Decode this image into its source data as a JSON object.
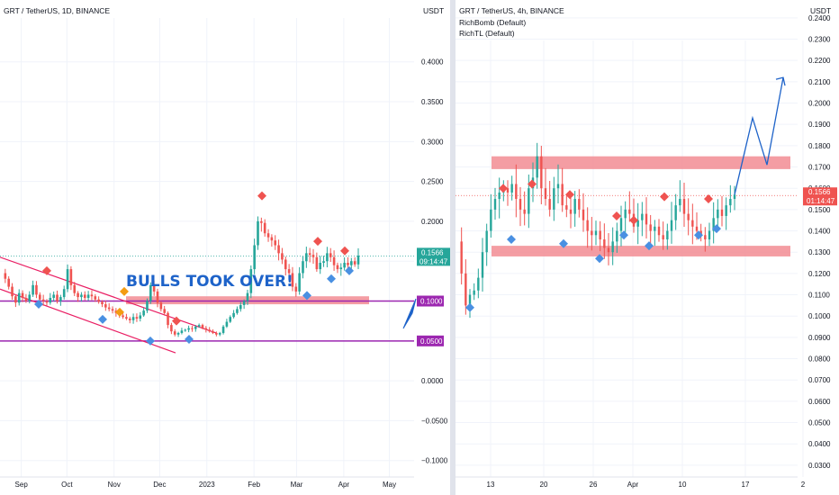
{
  "chart_data": [
    {
      "type": "candlestick",
      "title": "GRT / TetherUS, 1D, BINANCE",
      "currency": "USDT",
      "y_ticks": [
        -0.1,
        -0.05,
        0.0,
        0.05,
        0.1,
        0.15,
        0.2,
        0.25,
        0.3,
        0.35,
        0.4
      ],
      "y_tick_labels": [
        "−0.1000",
        "−0.0500",
        "0.0000",
        "0.0500",
        "0.1000",
        "0.1500",
        "0.2000",
        "0.2500",
        "0.3000",
        "0.3500",
        "0.4000"
      ],
      "ylim": [
        -0.115,
        0.455
      ],
      "x_labels": [
        "Sep",
        "Oct",
        "Nov",
        "Dec",
        "2023",
        "Feb",
        "Mar",
        "Apr",
        "May"
      ],
      "x_label_index": [
        0,
        30,
        61,
        91,
        122,
        153,
        181,
        212,
        242
      ],
      "x_start_offset": -14,
      "x_total_days": 290,
      "price_close": [
        0.135,
        0.128,
        0.118,
        0.106,
        0.098,
        0.11,
        0.104,
        0.1,
        0.108,
        0.12,
        0.108,
        0.102,
        0.1,
        0.098,
        0.104,
        0.108,
        0.1,
        0.105,
        0.115,
        0.14,
        0.12,
        0.11,
        0.105,
        0.108,
        0.104,
        0.108,
        0.106,
        0.102,
        0.099,
        0.096,
        0.092,
        0.09,
        0.088,
        0.085,
        0.082,
        0.08,
        0.078,
        0.076,
        0.08,
        0.078,
        0.082,
        0.088,
        0.1,
        0.12,
        0.112,
        0.098,
        0.09,
        0.085,
        0.07,
        0.062,
        0.058,
        0.06,
        0.063,
        0.064,
        0.066,
        0.065,
        0.068,
        0.07,
        0.066,
        0.064,
        0.062,
        0.06,
        0.058,
        0.06,
        0.068,
        0.074,
        0.08,
        0.085,
        0.09,
        0.095,
        0.1,
        0.11,
        0.14,
        0.17,
        0.2,
        0.198,
        0.185,
        0.18,
        0.176,
        0.17,
        0.16,
        0.152,
        0.14,
        0.135,
        0.118,
        0.112,
        0.135,
        0.15,
        0.16,
        0.158,
        0.155,
        0.14,
        0.148,
        0.15,
        0.16,
        0.155,
        0.145,
        0.14,
        0.142,
        0.148,
        0.145,
        0.15,
        0.146,
        0.157
      ],
      "marker_down_label": "BULLS TOOK OVER!",
      "price_tag": {
        "value": "0.1566",
        "countdown": "09:14:47"
      },
      "level_tags": [
        "0.1000",
        "0.0500"
      ],
      "levels": [
        0.1,
        0.05
      ],
      "zone": [
        0.096,
        0.106
      ],
      "colors": {
        "up": "#26a69a",
        "down": "#ef5350",
        "zone": "#f28c93",
        "level": "#9c27b0",
        "price": "#26a69a",
        "annotation": "#1e63c9",
        "channel": "#e91e63"
      }
    },
    {
      "type": "candlestick",
      "title": "GRT / TetherUS, 4h, BINANCE",
      "indicators": [
        "RichBomb (Default)",
        "RichTL (Default)"
      ],
      "currency": "USDT",
      "y_ticks": [
        0.03,
        0.04,
        0.05,
        0.06,
        0.07,
        0.08,
        0.09,
        0.1,
        0.11,
        0.12,
        0.13,
        0.14,
        0.15,
        0.16,
        0.17,
        0.18,
        0.19,
        0.2,
        0.21,
        0.22,
        0.23,
        0.24
      ],
      "y_tick_labels": [
        "0.0300",
        "0.0400",
        "0.0500",
        "0.0600",
        "0.0700",
        "0.0800",
        "0.0900",
        "0.1000",
        "0.1100",
        "0.1200",
        "0.1300",
        "0.1400",
        "0.1500",
        "0.1600",
        "0.1700",
        "0.1800",
        "0.1900",
        "0.2000",
        "0.2100",
        "0.2200",
        "0.2300",
        "0.2400"
      ],
      "ylim": [
        0.027,
        0.245
      ],
      "x_labels": [
        "13",
        "20",
        "26",
        "Apr",
        "10",
        "17",
        "2"
      ],
      "price_close": [
        0.135,
        0.12,
        0.105,
        0.11,
        0.112,
        0.118,
        0.13,
        0.14,
        0.15,
        0.155,
        0.158,
        0.16,
        0.158,
        0.162,
        0.155,
        0.15,
        0.148,
        0.16,
        0.165,
        0.175,
        0.16,
        0.155,
        0.15,
        0.16,
        0.162,
        0.152,
        0.15,
        0.148,
        0.155,
        0.15,
        0.145,
        0.14,
        0.138,
        0.14,
        0.136,
        0.132,
        0.13,
        0.135,
        0.14,
        0.146,
        0.15,
        0.148,
        0.142,
        0.145,
        0.148,
        0.143,
        0.14,
        0.142,
        0.138,
        0.136,
        0.14,
        0.145,
        0.152,
        0.155,
        0.148,
        0.145,
        0.142,
        0.14,
        0.138,
        0.136,
        0.14,
        0.146,
        0.15,
        0.147,
        0.152,
        0.155,
        0.157
      ],
      "price_tag": {
        "value": "0.1566",
        "countdown": "01:14:47"
      },
      "zones": [
        [
          0.169,
          0.175
        ],
        [
          0.128,
          0.133
        ]
      ],
      "projection": [
        0.157,
        0.193,
        0.171,
        0.212
      ],
      "colors": {
        "up": "#26a69a",
        "down": "#ef5350",
        "zone": "#f28c93",
        "projection": "#1e63c9",
        "price": "#ef5350"
      }
    }
  ]
}
